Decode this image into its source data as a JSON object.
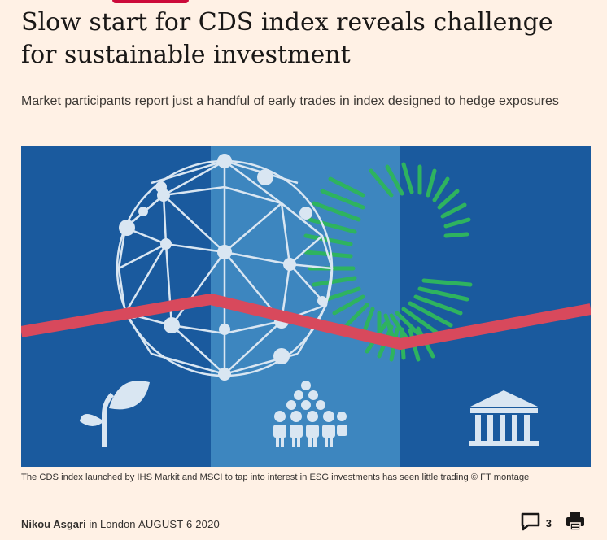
{
  "article": {
    "headline": "Slow start for CDS index reveals challenge for sustainable investment",
    "standfirst": "Market participants report just a handful of early trades in index designed to hedge exposures",
    "caption": "The CDS index launched by IHS Markit and MSCI to tap into interest in ESG investments has seen little trading © FT montage"
  },
  "byline": {
    "author": "Nikou Asgari",
    "location_prefix": " in London ",
    "date": "AUGUST 6 2020"
  },
  "tools": {
    "comment_count": "3",
    "comment_icon": "comment-icon",
    "print_icon": "print-icon"
  },
  "colors": {
    "background": "#fff1e5",
    "hero_blue_dark": "#1a5a9e",
    "hero_blue_light": "#3d86bf",
    "trend_red": "#d8495c",
    "globe_green": "#2eb35f",
    "accent_tab": "#cc0a3a"
  }
}
